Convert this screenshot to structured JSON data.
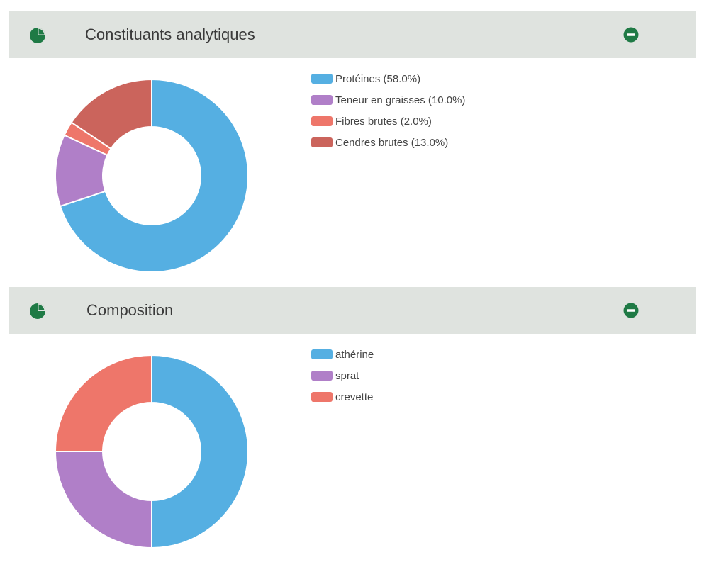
{
  "panels": [
    {
      "title": "Constituants analytiques",
      "icon": "pie-chart-icon",
      "collapse_icon": "minus-circle-icon",
      "legend": [
        {
          "label": "Protéines (58.0%)",
          "color": "#55afe2"
        },
        {
          "label": "Teneur en graisses (10.0%)",
          "color": "#b07fc8"
        },
        {
          "label": "Fibres brutes (2.0%)",
          "color": "#ee766a"
        },
        {
          "label": "Cendres brutes (13.0%)",
          "color": "#cb645c"
        }
      ]
    },
    {
      "title": "Composition",
      "icon": "pie-chart-icon",
      "collapse_icon": "minus-circle-icon",
      "legend": [
        {
          "label": "athérine",
          "color": "#55afe2"
        },
        {
          "label": "sprat",
          "color": "#b07fc8"
        },
        {
          "label": "crevette",
          "color": "#ee766a"
        }
      ]
    }
  ],
  "chart_data": [
    {
      "type": "pie",
      "variant": "doughnut",
      "title": "Constituants analytiques",
      "categories": [
        "Protéines",
        "Teneur en graisses",
        "Fibres brutes",
        "Cendres brutes"
      ],
      "values": [
        58.0,
        10.0,
        2.0,
        13.0
      ],
      "colors": [
        "#55afe2",
        "#b07fc8",
        "#ee766a",
        "#cb645c"
      ],
      "legend_position": "right"
    },
    {
      "type": "pie",
      "variant": "doughnut",
      "title": "Composition",
      "categories": [
        "athérine",
        "sprat",
        "crevette"
      ],
      "values": [
        50,
        25,
        25
      ],
      "colors": [
        "#55afe2",
        "#b07fc8",
        "#ee766a"
      ],
      "legend_position": "right"
    }
  ]
}
